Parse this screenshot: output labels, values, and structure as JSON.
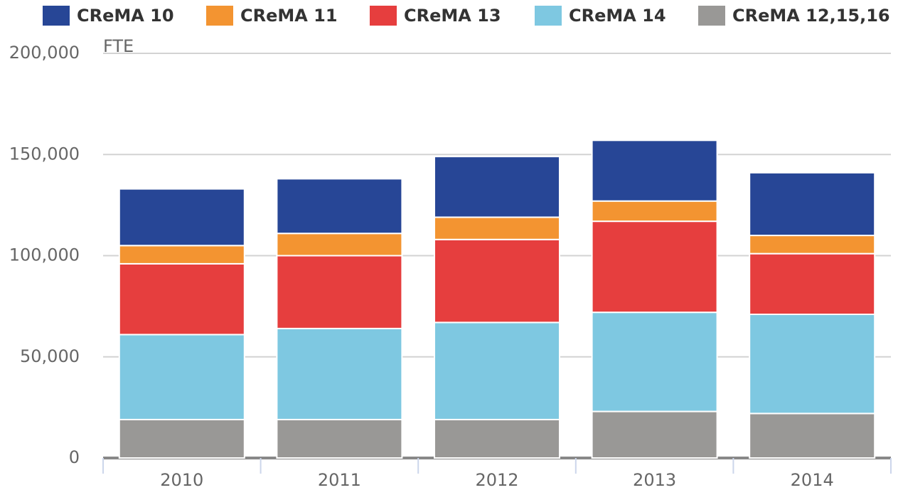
{
  "chart_data": {
    "type": "stacked_bar",
    "y_axis_label": "FTE",
    "categories": [
      "2010",
      "2011",
      "2012",
      "2013",
      "2014"
    ],
    "series": [
      {
        "name": "CReMA 12,15,16",
        "color": "#999896",
        "values": [
          19000,
          19000,
          19000,
          23000,
          22000
        ]
      },
      {
        "name": "CReMA 14",
        "color": "#7ec8e1",
        "values": [
          42000,
          45000,
          48000,
          49000,
          49000
        ]
      },
      {
        "name": "CReMA 13",
        "color": "#e63e3e",
        "values": [
          35000,
          36000,
          41000,
          45000,
          30000
        ]
      },
      {
        "name": "CReMA 11",
        "color": "#f39431",
        "values": [
          9000,
          11000,
          11000,
          10000,
          9000
        ]
      },
      {
        "name": "CReMA 10",
        "color": "#274696",
        "values": [
          28000,
          27000,
          30000,
          30000,
          31000
        ]
      }
    ],
    "legend_order": [
      4,
      3,
      2,
      1,
      0
    ],
    "ylim": [
      0,
      200000
    ],
    "yticks": [
      0,
      {
        "value": 50000,
        "label": "50,000"
      },
      {
        "value": 100000,
        "label": "100,000"
      },
      {
        "value": 150000,
        "label": "150,000"
      },
      {
        "value": 200000,
        "label": "200,000"
      }
    ],
    "grid": true
  }
}
